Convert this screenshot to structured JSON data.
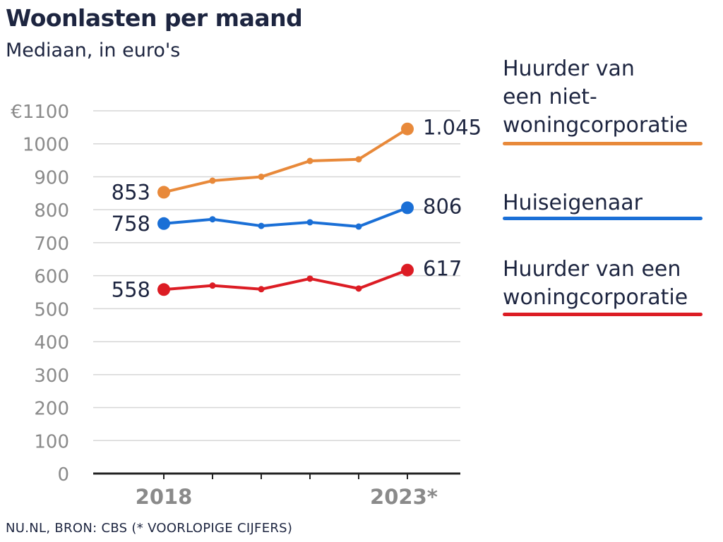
{
  "header": {
    "title": "Woonlasten per maand",
    "subtitle": "Mediaan, in euro's"
  },
  "footer": {
    "source": "NU.NL, BRON: CBS (* VOORLOPIGE CIJFERS)"
  },
  "colors": {
    "orange": "#e8893a",
    "blue": "#1a6fd6",
    "red": "#dc1c24",
    "grid": "#d6d6d6",
    "tick": "#8a8a8a",
    "text": "#1d2540"
  },
  "chart_data": {
    "type": "line",
    "ylim": [
      0,
      1100
    ],
    "y_ticks": [
      "€1100",
      "1000",
      "900",
      "800",
      "700",
      "600",
      "500",
      "400",
      "300",
      "200",
      "100",
      "0"
    ],
    "x": [
      2018,
      2019,
      2020,
      2021,
      2022,
      2023
    ],
    "x_tick_labels": [
      "2018",
      "",
      "",
      "",
      "",
      "2023*"
    ],
    "grid": true,
    "legend_placement": "right",
    "series": [
      {
        "name": "Huurder van een niet-woningcorporatie",
        "name_lines": [
          "Huurder van",
          "een niet-",
          "woningcorporatie"
        ],
        "color": "#e8893a",
        "values": [
          853,
          888,
          900,
          948,
          953,
          1045
        ],
        "start_label": "853",
        "end_label": "1.045"
      },
      {
        "name": "Huiseigenaar",
        "name_lines": [
          "Huiseigenaar"
        ],
        "color": "#1a6fd6",
        "values": [
          758,
          771,
          751,
          762,
          749,
          806
        ],
        "start_label": "758",
        "end_label": "806"
      },
      {
        "name": "Huurder van een woningcorporatie",
        "name_lines": [
          "Huurder van een",
          "woningcorporatie"
        ],
        "color": "#dc1c24",
        "values": [
          558,
          570,
          559,
          591,
          561,
          617
        ],
        "start_label": "558",
        "end_label": "617"
      }
    ]
  }
}
